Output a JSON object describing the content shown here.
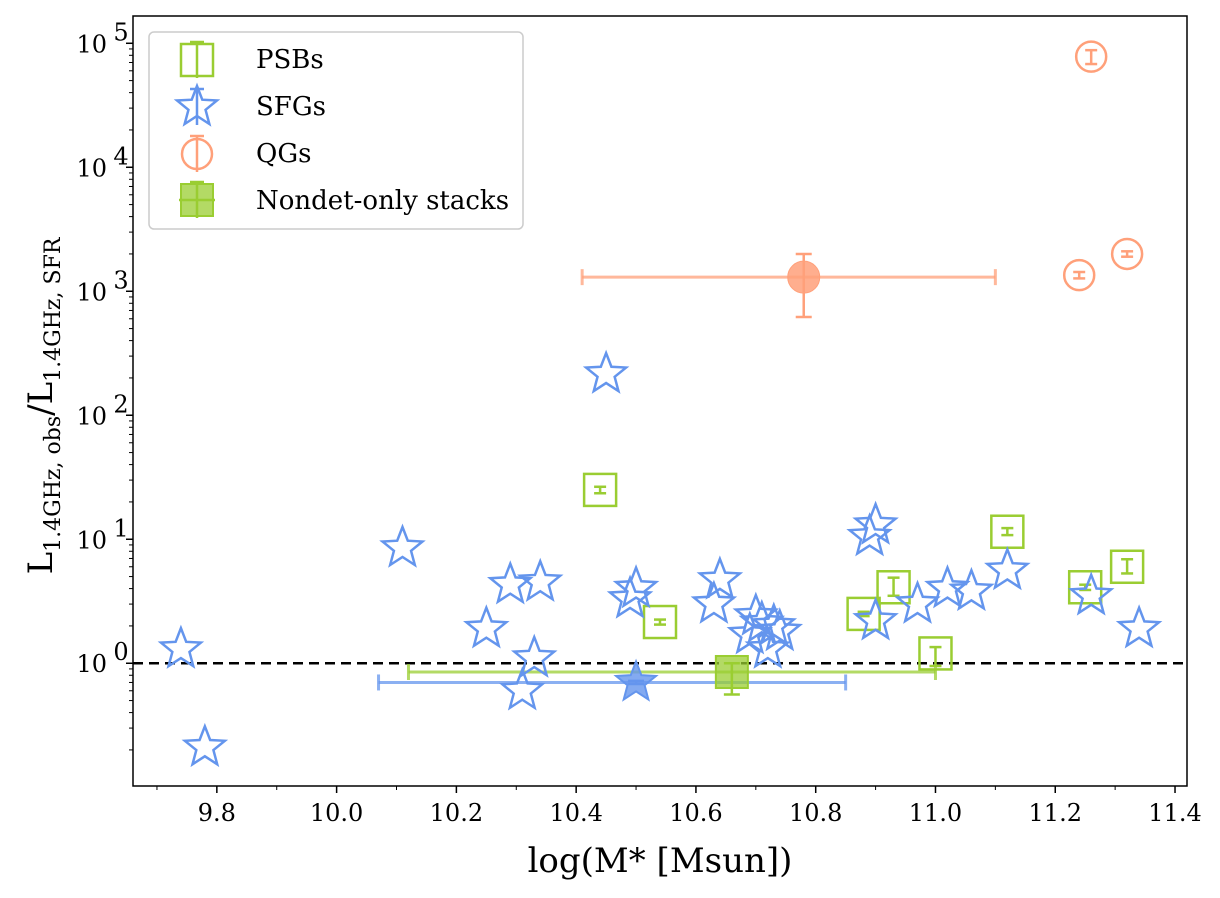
{
  "chart_data": {
    "type": "scatter",
    "xlabel": "log(M* [Msun])",
    "ylabel": {
      "main": "L",
      "num_sub": "1.4GHz, obs",
      "sep": "/L",
      "den_sub": "1.4GHz, SFR"
    },
    "xlim": [
      9.66,
      11.42
    ],
    "ylim_log10": [
      -0.99,
      5.22
    ],
    "yscale": "log",
    "x_ticks": [
      9.8,
      10.0,
      10.2,
      10.4,
      10.6,
      10.8,
      11.0,
      11.2,
      11.4
    ],
    "x_tick_labels": [
      "9.8",
      "10.0",
      "10.2",
      "10.4",
      "10.6",
      "10.8",
      "11.0",
      "11.2",
      "11.4"
    ],
    "y_ticks": [
      {
        "base": "10",
        "exp": "0",
        "value": 1
      },
      {
        "base": "10",
        "exp": "1",
        "value": 10
      },
      {
        "base": "10",
        "exp": "2",
        "value": 100
      },
      {
        "base": "10",
        "exp": "3",
        "value": 1000
      },
      {
        "base": "10",
        "exp": "4",
        "value": 10000
      },
      {
        "base": "10",
        "exp": "5",
        "value": 100000
      }
    ],
    "reference_line": {
      "y": 1,
      "style": "dashed",
      "color": "#000000"
    },
    "colors": {
      "PSBs": "#9acd32",
      "SFGs": "#6495ed",
      "QGs": "#ffa07a"
    },
    "legend": {
      "position": "upper-left",
      "entries": [
        {
          "label": "PSBs",
          "marker": "square-open"
        },
        {
          "label": "SFGs",
          "marker": "star-open"
        },
        {
          "label": "QGs",
          "marker": "circle-open"
        },
        {
          "label": "Nondet-only stacks",
          "marker": "square-filled"
        }
      ]
    },
    "series": [
      {
        "name": "PSBs",
        "marker": "square-open",
        "points": [
          {
            "x": 10.44,
            "y": 25,
            "yerr": [
              23.5,
              26.5
            ]
          },
          {
            "x": 10.54,
            "y": 2.15,
            "yerr": [
              2.05,
              2.25
            ]
          },
          {
            "x": 10.88,
            "y": 2.5,
            "yerr": [
              2.4,
              2.6
            ]
          },
          {
            "x": 10.93,
            "y": 4.1,
            "yerr": [
              3.5,
              4.9
            ]
          },
          {
            "x": 11.0,
            "y": 1.2,
            "yerr": [
              0.95,
              1.35
            ]
          },
          {
            "x": 11.12,
            "y": 11.5,
            "yerr": [
              10.8,
              12.3
            ]
          },
          {
            "x": 11.25,
            "y": 4.1,
            "yerr": [
              3.9,
              4.3
            ]
          },
          {
            "x": 11.32,
            "y": 6.0,
            "yerr": [
              5.3,
              6.9
            ]
          }
        ]
      },
      {
        "name": "SFGs",
        "marker": "star-open",
        "points": [
          {
            "x": 9.74,
            "y": 1.3
          },
          {
            "x": 9.78,
            "y": 0.21
          },
          {
            "x": 10.11,
            "y": 8.5
          },
          {
            "x": 10.25,
            "y": 1.9
          },
          {
            "x": 10.29,
            "y": 4.3
          },
          {
            "x": 10.31,
            "y": 0.6
          },
          {
            "x": 10.33,
            "y": 1.1
          },
          {
            "x": 10.34,
            "y": 4.5
          },
          {
            "x": 10.45,
            "y": 215
          },
          {
            "x": 10.49,
            "y": 3.3
          },
          {
            "x": 10.5,
            "y": 4.0
          },
          {
            "x": 10.63,
            "y": 3.0
          },
          {
            "x": 10.64,
            "y": 4.7
          },
          {
            "x": 10.69,
            "y": 1.7
          },
          {
            "x": 10.7,
            "y": 2.4
          },
          {
            "x": 10.71,
            "y": 2.1
          },
          {
            "x": 10.72,
            "y": 1.3
          },
          {
            "x": 10.73,
            "y": 2.0
          },
          {
            "x": 10.74,
            "y": 1.8
          },
          {
            "x": 10.89,
            "y": 10.5
          },
          {
            "x": 10.9,
            "y": 13.0
          },
          {
            "x": 10.9,
            "y": 2.2
          },
          {
            "x": 10.97,
            "y": 3.0
          },
          {
            "x": 11.02,
            "y": 4.0
          },
          {
            "x": 11.06,
            "y": 3.8
          },
          {
            "x": 11.12,
            "y": 5.6
          },
          {
            "x": 11.26,
            "y": 3.5
          },
          {
            "x": 11.34,
            "y": 1.9
          }
        ]
      },
      {
        "name": "QGs",
        "marker": "circle-open",
        "points": [
          {
            "x": 11.24,
            "y": 1350,
            "yerr": [
              1270,
              1430
            ]
          },
          {
            "x": 11.26,
            "y": 78000,
            "yerr": [
              68000,
              88000
            ]
          },
          {
            "x": 11.32,
            "y": 2000,
            "yerr": [
              1900,
              2100
            ]
          }
        ]
      }
    ],
    "stacks": [
      {
        "name": "QGs stack",
        "color": "#ffa07a",
        "marker": "circle-filled",
        "x": 10.78,
        "y": 1300,
        "xerr": [
          10.41,
          11.1
        ],
        "yerr": [
          620,
          2000
        ]
      },
      {
        "name": "SFGs stack",
        "color": "#6495ed",
        "marker": "star-filled",
        "x": 10.5,
        "y": 0.7,
        "xerr": [
          10.07,
          10.85
        ],
        "yerr": [
          0.68,
          0.72
        ]
      },
      {
        "name": "PSBs stack",
        "color": "#9acd32",
        "marker": "square-filled",
        "x": 10.66,
        "y": 0.85,
        "xerr": [
          10.12,
          11.0
        ],
        "yerr": [
          0.56,
          1.0
        ]
      }
    ]
  }
}
